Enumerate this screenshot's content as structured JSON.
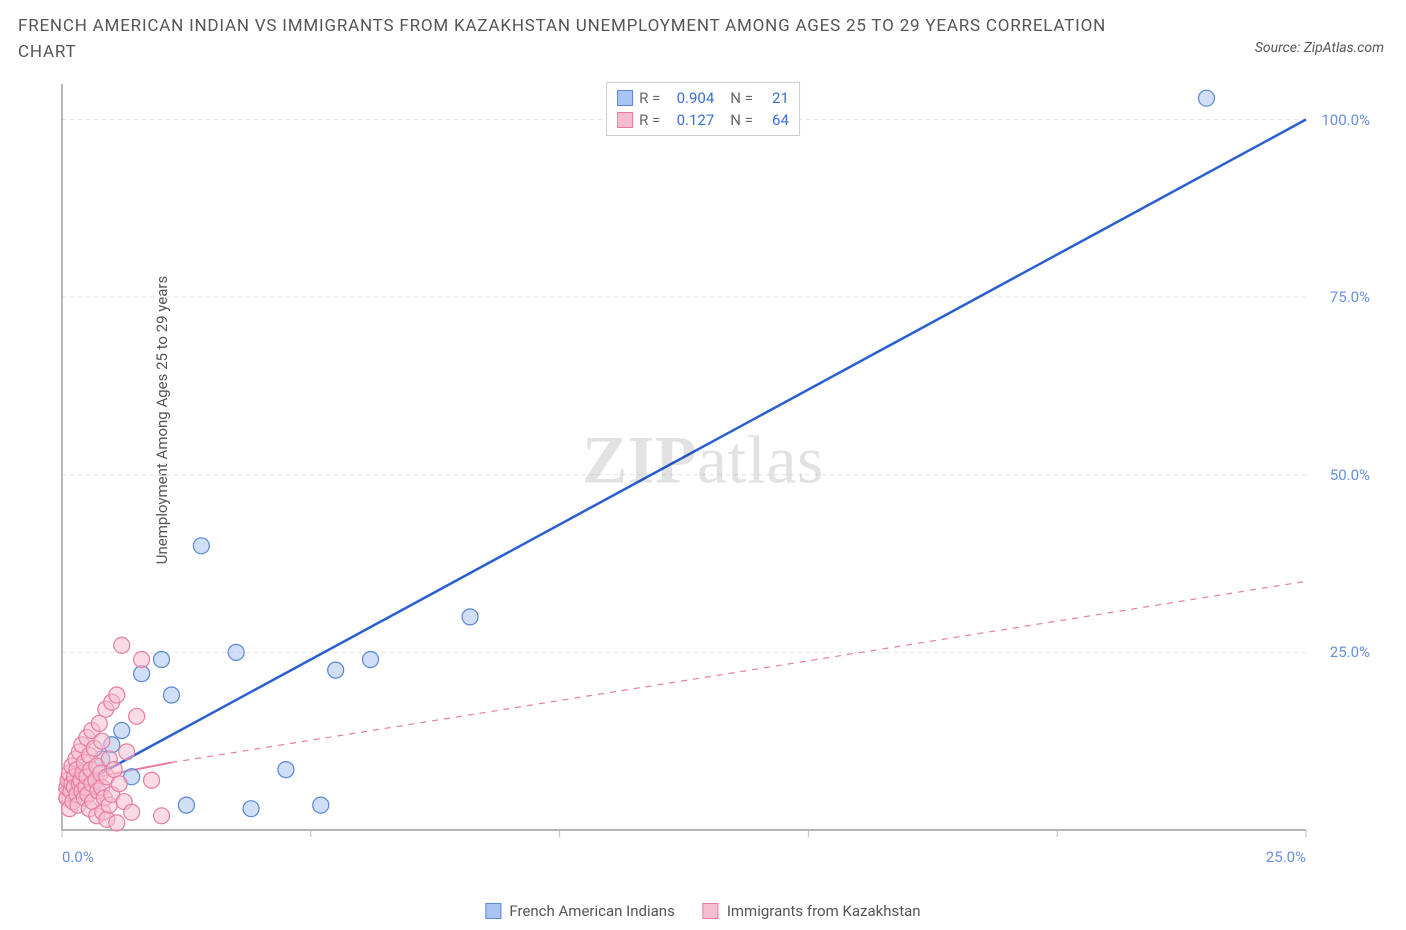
{
  "title": "FRENCH AMERICAN INDIAN VS IMMIGRANTS FROM KAZAKHSTAN UNEMPLOYMENT AMONG AGES 25 TO 29 YEARS CORRELATION CHART",
  "source_label": "Source: ZipAtlas.com",
  "y_axis_label": "Unemployment Among Ages 25 to 29 years",
  "watermark_part1": "ZIP",
  "watermark_part2": "atlas",
  "chart": {
    "type": "scatter",
    "background_color": "#ffffff",
    "grid_color": "#e3e3e3",
    "axis_color": "#888888",
    "tick_color": "#bbbbbb",
    "tick_label_color": "#6a8fdf",
    "xlim": [
      0,
      25
    ],
    "ylim": [
      0,
      105
    ],
    "x_ticks": [
      0,
      5,
      10,
      15,
      20,
      25
    ],
    "x_tick_labels": [
      "0.0%",
      "",
      "",
      "",
      "",
      "25.0%"
    ],
    "y_ticks": [
      25,
      50,
      75,
      100
    ],
    "y_tick_labels": [
      "25.0%",
      "50.0%",
      "75.0%",
      "100.0%"
    ],
    "marker_radius": 8,
    "marker_opacity": 0.55,
    "series": [
      {
        "name": "French American Indians",
        "fill_color": "#a9c4f0",
        "stroke_color": "#5b87d6",
        "line_color": "#2a5fd0",
        "line_width": 2.5,
        "line_dash": "none",
        "trend": {
          "x1": 0,
          "y1": 5,
          "x2": 25,
          "y2": 100,
          "extrapolate_dashed": false
        },
        "points": [
          [
            0.2,
            6.5
          ],
          [
            0.3,
            7.0
          ],
          [
            0.5,
            8.0
          ],
          [
            0.6,
            6.0
          ],
          [
            0.8,
            10.0
          ],
          [
            1.0,
            12.0
          ],
          [
            1.4,
            7.5
          ],
          [
            1.6,
            22.0
          ],
          [
            2.0,
            24.0
          ],
          [
            2.2,
            19.0
          ],
          [
            2.8,
            40.0
          ],
          [
            2.5,
            3.5
          ],
          [
            3.5,
            25.0
          ],
          [
            3.8,
            3.0
          ],
          [
            5.2,
            3.5
          ],
          [
            5.5,
            22.5
          ],
          [
            6.2,
            24.0
          ],
          [
            8.2,
            30.0
          ],
          [
            4.5,
            8.5
          ],
          [
            1.2,
            14.0
          ],
          [
            23.0,
            103.0
          ]
        ]
      },
      {
        "name": "Immigrants from Kazakhstan",
        "fill_color": "#f5bdd0",
        "stroke_color": "#e87da1",
        "line_color": "#e87da1",
        "line_width": 2.0,
        "line_dash": "dashed",
        "trend": {
          "x1": 0,
          "y1": 6.5,
          "x2": 2.2,
          "y2": 9.5,
          "extrapolate_to_x": 25,
          "extrapolate_to_y": 35
        },
        "points": [
          [
            0.05,
            5.0
          ],
          [
            0.1,
            4.5
          ],
          [
            0.1,
            6.0
          ],
          [
            0.12,
            7.0
          ],
          [
            0.15,
            3.0
          ],
          [
            0.15,
            8.0
          ],
          [
            0.18,
            5.5
          ],
          [
            0.2,
            6.5
          ],
          [
            0.2,
            9.0
          ],
          [
            0.22,
            4.0
          ],
          [
            0.25,
            7.5
          ],
          [
            0.25,
            6.0
          ],
          [
            0.28,
            10.0
          ],
          [
            0.3,
            5.0
          ],
          [
            0.3,
            8.5
          ],
          [
            0.32,
            3.5
          ],
          [
            0.35,
            11.0
          ],
          [
            0.35,
            6.5
          ],
          [
            0.38,
            7.0
          ],
          [
            0.4,
            5.5
          ],
          [
            0.4,
            12.0
          ],
          [
            0.42,
            8.0
          ],
          [
            0.45,
            4.5
          ],
          [
            0.45,
            9.5
          ],
          [
            0.48,
            6.0
          ],
          [
            0.5,
            13.0
          ],
          [
            0.5,
            7.5
          ],
          [
            0.52,
            5.0
          ],
          [
            0.55,
            10.5
          ],
          [
            0.55,
            3.0
          ],
          [
            0.58,
            8.5
          ],
          [
            0.6,
            6.5
          ],
          [
            0.6,
            14.0
          ],
          [
            0.62,
            4.0
          ],
          [
            0.65,
            11.5
          ],
          [
            0.68,
            7.0
          ],
          [
            0.7,
            9.0
          ],
          [
            0.7,
            2.0
          ],
          [
            0.72,
            5.5
          ],
          [
            0.75,
            15.0
          ],
          [
            0.78,
            8.0
          ],
          [
            0.8,
            6.0
          ],
          [
            0.8,
            12.5
          ],
          [
            0.82,
            2.5
          ],
          [
            0.85,
            4.5
          ],
          [
            0.88,
            17.0
          ],
          [
            0.9,
            7.5
          ],
          [
            0.9,
            1.5
          ],
          [
            0.95,
            10.0
          ],
          [
            0.95,
            3.5
          ],
          [
            1.0,
            18.0
          ],
          [
            1.0,
            5.0
          ],
          [
            1.05,
            8.5
          ],
          [
            1.1,
            19.0
          ],
          [
            1.1,
            1.0
          ],
          [
            1.15,
            6.5
          ],
          [
            1.2,
            26.0
          ],
          [
            1.25,
            4.0
          ],
          [
            1.3,
            11.0
          ],
          [
            1.4,
            2.5
          ],
          [
            1.5,
            16.0
          ],
          [
            1.6,
            24.0
          ],
          [
            1.8,
            7.0
          ],
          [
            2.0,
            2.0
          ]
        ]
      }
    ]
  },
  "legend_top": {
    "rows": [
      {
        "swatch_fill": "#a9c4f0",
        "swatch_stroke": "#5b87d6",
        "r_label": "R =",
        "r_value": "0.904",
        "n_label": "N =",
        "n_value": "21"
      },
      {
        "swatch_fill": "#f5bdd0",
        "swatch_stroke": "#e87da1",
        "r_label": "R =",
        "r_value": "0.127",
        "n_label": "N =",
        "n_value": "64"
      }
    ]
  },
  "legend_bottom": {
    "items": [
      {
        "swatch_fill": "#a9c4f0",
        "swatch_stroke": "#5b87d6",
        "label": "French American Indians"
      },
      {
        "swatch_fill": "#f5bdd0",
        "swatch_stroke": "#e87da1",
        "label": "Immigrants from Kazakhstan"
      }
    ]
  }
}
